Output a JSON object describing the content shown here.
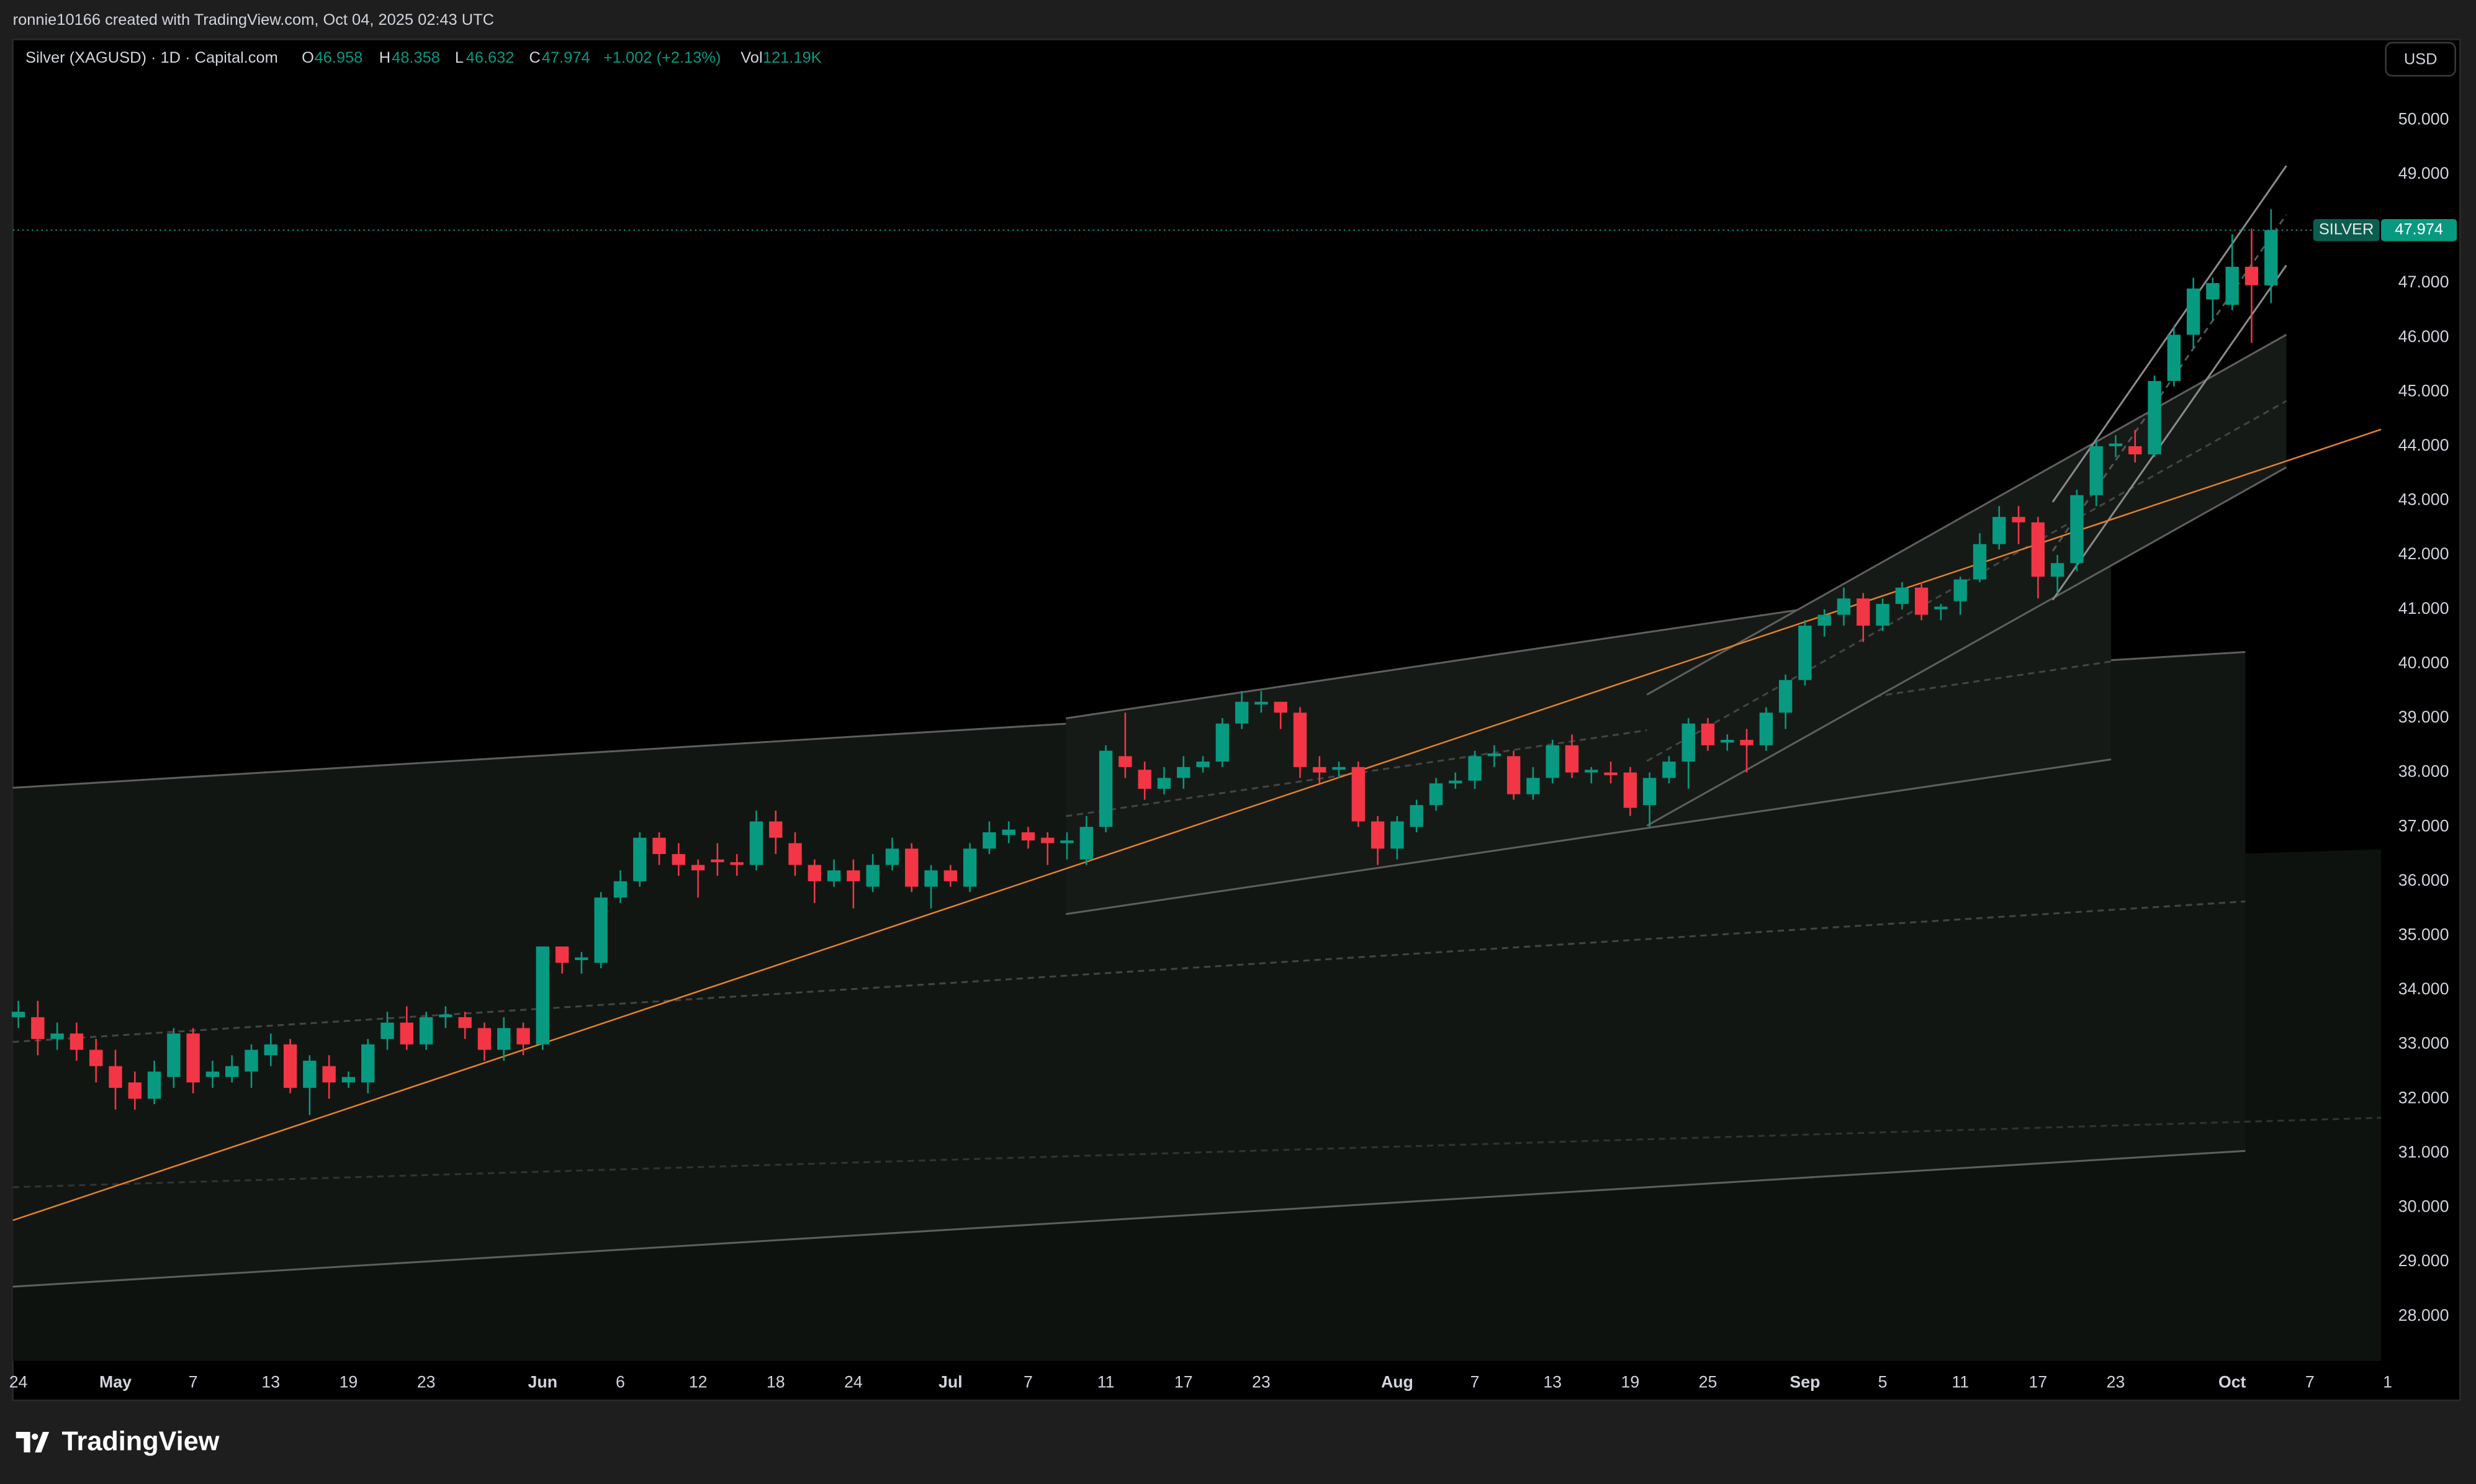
{
  "page": {
    "credit": "ronnie10166 created with TradingView.com, Oct 04, 2025 02:43 UTC",
    "logo": "TradingView"
  },
  "chart_data": {
    "type": "candlestick",
    "title": "Silver (XAGUSD) · 1D · Capital.com",
    "ohlc_labels": [
      "O",
      "H",
      "L",
      "C"
    ],
    "change": "+1.002 (+2.13%)",
    "volume_label": "Vol",
    "volume": "121.19K",
    "currency": "USD",
    "symbol_tag": "SILVER",
    "up_color": "#089981",
    "down_color": "#f23645",
    "grid": false,
    "ylim": [
      27.18,
      51.48
    ],
    "yticks": [
      {
        "value": 28,
        "label": "28.000"
      },
      {
        "value": 29,
        "label": "29.000"
      },
      {
        "value": 30,
        "label": "30.000"
      },
      {
        "value": 31,
        "label": "31.000"
      },
      {
        "value": 32,
        "label": "32.000"
      },
      {
        "value": 33,
        "label": "33.000"
      },
      {
        "value": 34,
        "label": "34.000"
      },
      {
        "value": 35,
        "label": "35.000"
      },
      {
        "value": 36,
        "label": "36.000"
      },
      {
        "value": 37,
        "label": "37.000"
      },
      {
        "value": 38,
        "label": "38.000"
      },
      {
        "value": 39,
        "label": "39.000"
      },
      {
        "value": 40,
        "label": "40.000"
      },
      {
        "value": 41,
        "label": "41.000"
      },
      {
        "value": 42,
        "label": "42.000"
      },
      {
        "value": 43,
        "label": "43.000"
      },
      {
        "value": 44,
        "label": "44.000"
      },
      {
        "value": 45,
        "label": "45.000"
      },
      {
        "value": 46,
        "label": "46.000"
      },
      {
        "value": 47,
        "label": "47.000"
      },
      {
        "value": 48,
        "label": "48.000"
      },
      {
        "value": 49,
        "label": "49.000"
      },
      {
        "value": 50,
        "label": "50.000"
      }
    ],
    "categories": [
      "24",
      null,
      null,
      null,
      null,
      "May",
      null,
      null,
      null,
      "7",
      null,
      null,
      null,
      "13",
      null,
      null,
      null,
      "19",
      null,
      null,
      null,
      "23",
      null,
      null,
      null,
      null,
      null,
      "Jun",
      null,
      null,
      null,
      "6",
      null,
      null,
      null,
      "12",
      null,
      null,
      null,
      "18",
      null,
      null,
      null,
      "24",
      null,
      null,
      null,
      null,
      "Jul",
      null,
      null,
      null,
      "7",
      null,
      null,
      null,
      "11",
      null,
      null,
      null,
      "17",
      null,
      null,
      null,
      "23",
      null,
      null,
      null,
      null,
      null,
      null,
      "Aug",
      null,
      null,
      null,
      "7",
      null,
      null,
      null,
      "13",
      null,
      null,
      null,
      "19",
      null,
      null,
      null,
      "25",
      null,
      null,
      null,
      null,
      "Sep",
      null,
      null,
      null,
      "5",
      null,
      null,
      null,
      "11",
      null,
      null,
      null,
      "17",
      null,
      null,
      null,
      "23",
      null,
      null,
      null,
      null,
      null,
      "Oct",
      null,
      null,
      null,
      "7",
      null,
      null,
      null,
      "1"
    ],
    "open": [
      33.5,
      33.5,
      33.1,
      33.2,
      32.9,
      32.6,
      32.3,
      32.0,
      32.4,
      33.2,
      32.4,
      32.4,
      32.5,
      32.8,
      33.0,
      32.2,
      32.6,
      32.3,
      32.3,
      33.1,
      33.4,
      33.0,
      33.5,
      33.5,
      33.3,
      32.9,
      33.3,
      33.0,
      34.8,
      34.55,
      34.5,
      35.7,
      36.0,
      36.8,
      36.5,
      36.3,
      36.4,
      36.35,
      36.3,
      37.1,
      36.7,
      36.3,
      36.0,
      36.2,
      35.9,
      36.3,
      36.6,
      35.9,
      36.2,
      35.9,
      36.6,
      36.85,
      36.9,
      36.8,
      36.7,
      36.4,
      37.0,
      38.3,
      38.05,
      37.7,
      37.9,
      38.1,
      38.2,
      38.9,
      39.25,
      39.3,
      39.1,
      38.1,
      38.05,
      38.1,
      37.1,
      36.6,
      37.0,
      37.4,
      37.8,
      37.85,
      38.3,
      38.3,
      37.6,
      37.9,
      38.5,
      38.0,
      38.0,
      38.0,
      37.4,
      37.9,
      38.2,
      38.9,
      38.55,
      38.6,
      38.5,
      39.1,
      39.7,
      40.7,
      40.9,
      41.2,
      40.7,
      41.1,
      41.4,
      41.0,
      41.15,
      41.55,
      42.2,
      42.7,
      42.6,
      41.6,
      41.85,
      43.1,
      44.0,
      44.0,
      43.85,
      45.2,
      46.05,
      46.7,
      46.6,
      47.3,
      46.958,
      null,
      null,
      null,
      null,
      null,
      null
    ],
    "high": [
      33.8,
      33.8,
      33.4,
      33.4,
      33.1,
      32.9,
      32.5,
      32.7,
      33.3,
      33.3,
      32.7,
      32.8,
      33.0,
      33.2,
      33.1,
      32.8,
      32.8,
      32.5,
      33.1,
      33.6,
      33.7,
      33.6,
      33.7,
      33.6,
      33.4,
      33.5,
      33.4,
      34.8,
      34.8,
      34.7,
      35.8,
      36.2,
      36.9,
      36.9,
      36.7,
      36.4,
      36.7,
      36.5,
      37.3,
      37.3,
      36.9,
      36.4,
      36.4,
      36.4,
      36.5,
      36.8,
      36.7,
      36.3,
      36.3,
      36.7,
      37.1,
      37.1,
      37.0,
      36.9,
      36.9,
      37.2,
      38.5,
      39.1,
      38.2,
      38.1,
      38.3,
      38.3,
      39.0,
      39.5,
      39.5,
      39.3,
      39.2,
      38.3,
      38.2,
      38.2,
      37.2,
      37.2,
      37.5,
      37.9,
      38.0,
      38.4,
      38.5,
      38.4,
      38.1,
      38.6,
      38.7,
      38.1,
      38.2,
      38.1,
      38.0,
      38.3,
      39.0,
      39.0,
      38.7,
      38.8,
      39.2,
      39.8,
      40.8,
      41.0,
      41.4,
      41.3,
      41.2,
      41.5,
      41.5,
      41.1,
      41.6,
      42.4,
      42.9,
      42.9,
      42.7,
      42.0,
      43.2,
      44.1,
      44.2,
      44.3,
      45.3,
      46.2,
      47.1,
      47.1,
      47.9,
      48.0,
      48.358,
      null,
      null,
      null,
      null,
      null,
      null
    ],
    "low": [
      33.3,
      32.8,
      32.9,
      32.7,
      32.3,
      31.8,
      31.8,
      31.9,
      32.2,
      32.1,
      32.2,
      32.3,
      32.2,
      32.6,
      32.1,
      31.7,
      32.0,
      32.2,
      32.1,
      32.9,
      32.9,
      32.9,
      33.3,
      33.1,
      32.7,
      32.7,
      32.8,
      32.9,
      34.3,
      34.3,
      34.4,
      35.6,
      35.9,
      36.3,
      36.1,
      35.7,
      36.1,
      36.1,
      36.2,
      36.5,
      36.1,
      35.6,
      35.9,
      35.5,
      35.8,
      36.2,
      35.8,
      35.5,
      35.9,
      35.8,
      36.5,
      36.7,
      36.6,
      36.3,
      36.4,
      36.3,
      36.9,
      37.9,
      37.5,
      37.6,
      37.7,
      38.0,
      38.1,
      38.8,
      39.1,
      38.8,
      37.9,
      37.8,
      37.9,
      37.0,
      36.3,
      36.4,
      36.9,
      37.3,
      37.7,
      37.7,
      38.1,
      37.5,
      37.5,
      37.8,
      37.9,
      37.8,
      37.8,
      37.2,
      37.0,
      37.8,
      37.7,
      38.4,
      38.4,
      38.0,
      38.4,
      38.8,
      39.6,
      40.5,
      40.7,
      40.4,
      40.6,
      41.0,
      40.8,
      40.8,
      40.9,
      41.5,
      42.1,
      42.2,
      41.2,
      41.3,
      41.7,
      42.9,
      43.8,
      43.7,
      43.8,
      45.1,
      45.8,
      46.3,
      46.5,
      45.9,
      46.632,
      null,
      null,
      null,
      null,
      null,
      null
    ],
    "close": [
      33.6,
      33.1,
      33.2,
      32.9,
      32.6,
      32.2,
      32.0,
      32.5,
      33.2,
      32.3,
      32.5,
      32.6,
      32.9,
      33.0,
      32.2,
      32.7,
      32.3,
      32.4,
      33.0,
      33.4,
      33.0,
      33.5,
      33.55,
      33.3,
      32.9,
      33.3,
      33.0,
      34.8,
      34.5,
      34.6,
      35.7,
      36.0,
      36.8,
      36.5,
      36.3,
      36.2,
      36.35,
      36.3,
      37.1,
      36.8,
      36.3,
      36.0,
      36.2,
      36.0,
      36.3,
      36.6,
      35.9,
      36.2,
      36.0,
      36.6,
      36.9,
      36.95,
      36.75,
      36.7,
      36.75,
      37.0,
      38.4,
      38.1,
      37.7,
      37.9,
      38.1,
      38.2,
      38.9,
      39.3,
      39.3,
      39.1,
      38.1,
      38.0,
      38.1,
      37.1,
      36.6,
      37.1,
      37.4,
      37.8,
      37.85,
      38.3,
      38.35,
      37.6,
      37.9,
      38.5,
      38.0,
      38.05,
      37.95,
      37.35,
      37.9,
      38.2,
      38.9,
      38.5,
      38.6,
      38.5,
      39.1,
      39.7,
      40.7,
      40.9,
      41.2,
      40.7,
      41.1,
      41.4,
      40.9,
      41.05,
      41.55,
      42.2,
      42.7,
      42.6,
      41.6,
      41.85,
      43.1,
      44.0,
      44.05,
      43.85,
      45.2,
      46.05,
      46.9,
      47.0,
      47.3,
      46.96,
      47.974,
      null,
      null,
      null,
      null,
      null,
      null
    ]
  }
}
